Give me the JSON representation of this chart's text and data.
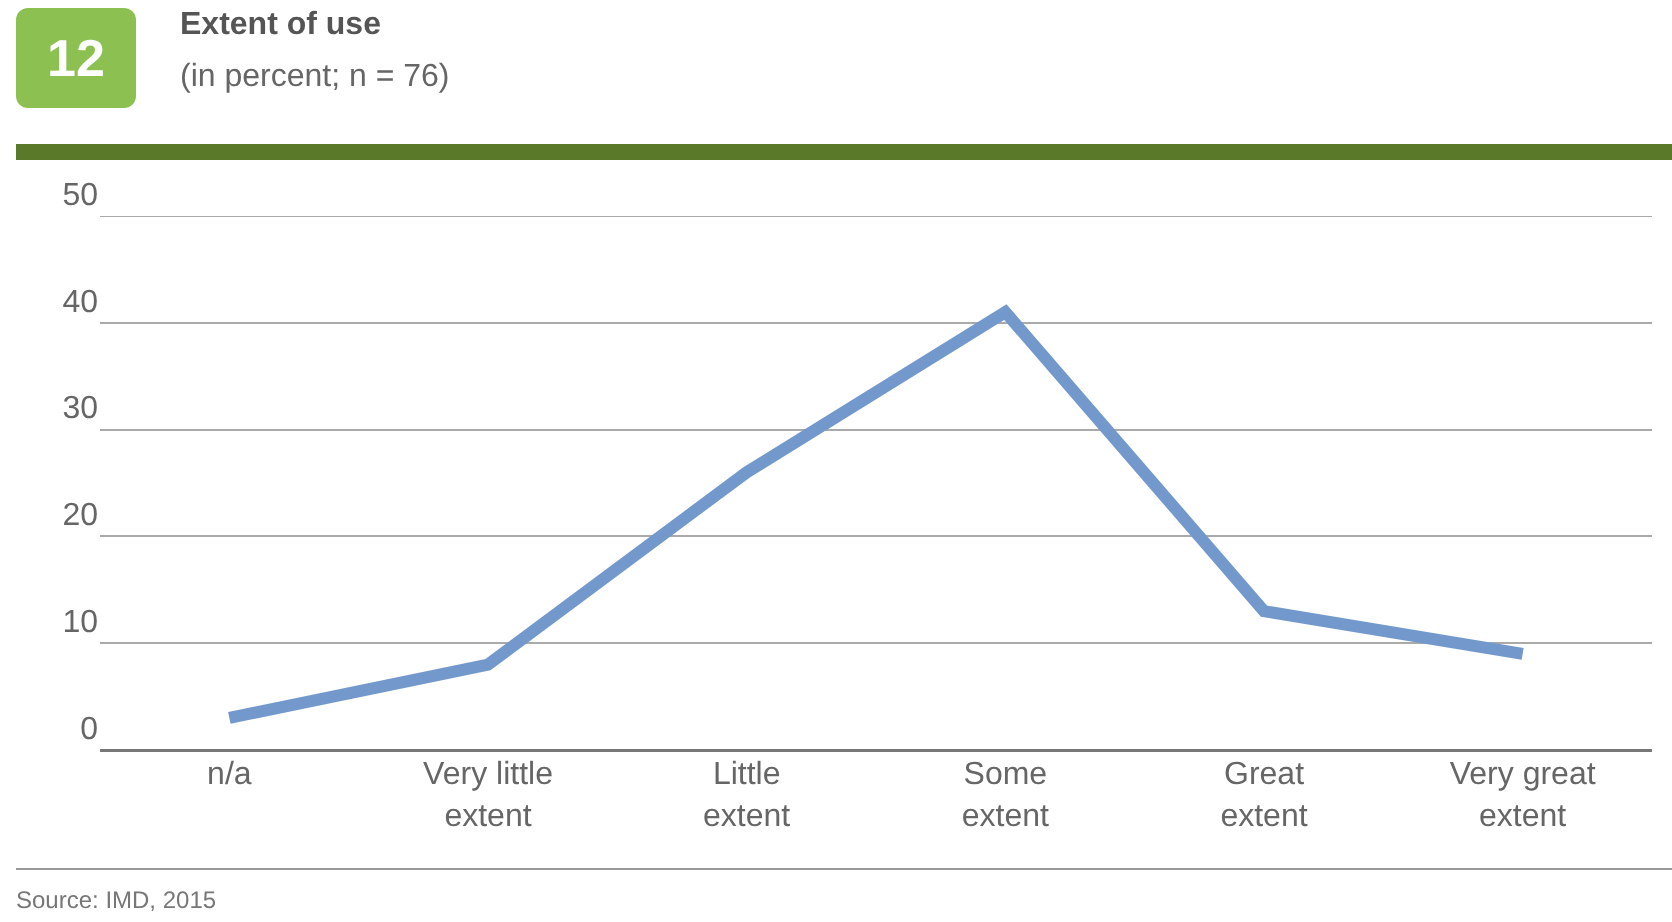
{
  "chart_data": {
    "type": "line",
    "title": "Extent of use",
    "subtitle": "(in percent; n = 76)",
    "categories": [
      "n/a",
      "Very little extent",
      "Little extent",
      "Some extent",
      "Great extent",
      "Very great extent"
    ],
    "series": [
      {
        "color": "#7399cc",
        "values": [
          3,
          8,
          26,
          41,
          13,
          9
        ]
      }
    ],
    "ylim": [
      0,
      50
    ],
    "yticks": [
      0,
      10,
      20,
      30,
      40,
      50
    ],
    "grid": "y",
    "marker": "none",
    "line_style": "solid",
    "annotations": [
      "12",
      "Source: IMD, 2015"
    ]
  }
}
